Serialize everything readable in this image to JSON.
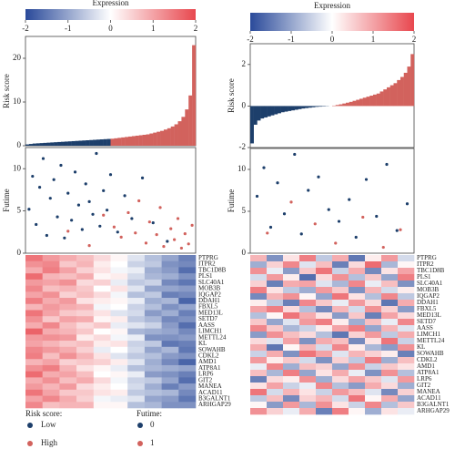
{
  "chart_data": [
    {
      "type": "bar",
      "ylabel": "Risk score",
      "ylim": [
        0,
        25
      ],
      "yticks": [
        0,
        10,
        20
      ],
      "series": [
        {
          "color": "#1d3f6b",
          "values": [
            0.3,
            0.4,
            0.5,
            0.55,
            0.6,
            0.65,
            0.7,
            0.75,
            0.8,
            0.85,
            0.9,
            0.95,
            1.0,
            1.05,
            1.1,
            1.15,
            1.2,
            1.25,
            1.3,
            1.35,
            1.4,
            1.45,
            1.5,
            1.55
          ]
        },
        {
          "color": "#d2625d",
          "values": [
            1.6,
            1.7,
            1.8,
            1.9,
            2.0,
            2.1,
            2.2,
            2.3,
            2.4,
            2.5,
            2.6,
            2.8,
            3.0,
            3.2,
            3.4,
            3.7,
            4.0,
            4.4,
            4.9,
            5.6,
            6.6,
            8.3,
            11.5,
            23
          ]
        }
      ]
    },
    {
      "type": "scatter",
      "ylabel": "Futime",
      "xlim": [
        0,
        48
      ],
      "ylim": [
        0,
        12.5
      ],
      "yticks": [
        0,
        5,
        10
      ],
      "series": [
        {
          "color": "#1d3f6b",
          "x": [
            1,
            2,
            3,
            4,
            5,
            6,
            7,
            8,
            9,
            10,
            11,
            12,
            13,
            14,
            15,
            16,
            17,
            18,
            19,
            20,
            21,
            22,
            23,
            24,
            26,
            28,
            30,
            33,
            36,
            40
          ],
          "values": [
            5.2,
            9.1,
            3.4,
            7.8,
            11.2,
            2.1,
            6.5,
            8.7,
            4.3,
            10.4,
            1.8,
            7.1,
            3.9,
            9.6,
            5.7,
            2.8,
            8.2,
            6.1,
            4.6,
            11.8,
            3.2,
            7.4,
            5.1,
            9.3,
            2.5,
            6.8,
            4.1,
            8.9,
            3.6,
            1.4
          ]
        },
        {
          "color": "#d2625d",
          "x": [
            25,
            27,
            29,
            31,
            32,
            34,
            35,
            37,
            38,
            39,
            41,
            42,
            43,
            44,
            45,
            46,
            47,
            12,
            18,
            22
          ],
          "values": [
            3.1,
            1.9,
            4.8,
            2.4,
            6.2,
            1.2,
            3.7,
            2.2,
            5.4,
            0.8,
            2.9,
            1.6,
            4.1,
            0.6,
            2.3,
            1.1,
            3.3,
            2.6,
            0.9,
            4.5
          ]
        }
      ]
    },
    {
      "type": "heatmap",
      "colorbar_title": "Expression",
      "clim": [
        -2,
        2
      ],
      "cticks": [
        -2,
        -1,
        0,
        1,
        2
      ],
      "colors": [
        "#2a4a9a",
        "#ffffff",
        "#e8474e"
      ],
      "genes": [
        "PTPRG",
        "ITPR2",
        "TBC1D8B",
        "PLS1",
        "SLC40A1",
        "MOB3B",
        "IQGAP2",
        "DDAH1",
        "FBXL5",
        "MED13L",
        "SETD7",
        "AASS",
        "LIMCH1",
        "METTL24",
        "KL",
        "SOWAHB",
        "CDKL2",
        "AMD1",
        "ATP8A1",
        "LRP6",
        "GIT2",
        "MANEA",
        "ACAD11",
        "B3GALNT1",
        "ARHGAP29"
      ],
      "values": [
        [
          1.5,
          1.1,
          0.9,
          0.7,
          0.4,
          0.1,
          -0.3,
          -0.7,
          -1.0,
          -1.4
        ],
        [
          1.2,
          1.3,
          0.6,
          0.8,
          0.2,
          0.0,
          -0.5,
          -0.6,
          -1.2,
          -1.3
        ],
        [
          0.9,
          1.4,
          1.0,
          0.5,
          0.3,
          -0.1,
          -0.2,
          -0.9,
          -1.1,
          -1.6
        ],
        [
          1.6,
          0.8,
          0.7,
          0.9,
          0.1,
          0.2,
          -0.4,
          -0.8,
          -0.9,
          -1.2
        ],
        [
          1.1,
          1.0,
          1.2,
          0.4,
          0.5,
          -0.2,
          -0.6,
          -0.5,
          -1.3,
          -1.5
        ],
        [
          1.3,
          0.7,
          0.8,
          0.6,
          0.0,
          0.3,
          -0.3,
          -1.0,
          -1.0,
          -1.1
        ],
        [
          1.0,
          1.2,
          0.5,
          0.7,
          0.4,
          -0.1,
          -0.7,
          -0.6,
          -1.4,
          -1.3
        ],
        [
          1.4,
          0.9,
          1.1,
          0.3,
          0.2,
          0.1,
          -0.2,
          -0.9,
          -0.8,
          -1.7
        ],
        [
          0.8,
          1.1,
          0.9,
          0.8,
          -0.1,
          0.0,
          -0.5,
          -0.7,
          -1.2,
          -1.0
        ],
        [
          1.5,
          1.0,
          0.6,
          0.5,
          0.3,
          -0.3,
          -0.4,
          -1.1,
          -0.9,
          -1.4
        ],
        [
          1.2,
          0.6,
          1.0,
          0.9,
          0.1,
          0.2,
          -0.6,
          -0.8,
          -1.3,
          -1.2
        ],
        [
          0.9,
          1.3,
          0.7,
          0.4,
          0.6,
          -0.2,
          -0.3,
          -0.5,
          -1.1,
          -1.6
        ],
        [
          1.7,
          0.9,
          0.8,
          0.6,
          0.0,
          0.1,
          -0.8,
          -0.9,
          -1.0,
          -1.3
        ],
        [
          1.1,
          1.2,
          1.1,
          0.2,
          0.4,
          -0.1,
          -0.2,
          -1.2,
          -1.2,
          -1.1
        ],
        [
          1.0,
          0.8,
          0.6,
          0.7,
          0.2,
          0.3,
          -0.5,
          -0.6,
          -1.5,
          -1.4
        ],
        [
          1.3,
          1.1,
          0.9,
          0.5,
          -0.2,
          0.0,
          -0.4,
          -1.0,
          -0.8,
          -1.5
        ],
        [
          1.4,
          0.7,
          1.2,
          0.8,
          0.3,
          -0.3,
          -0.6,
          -0.7,
          -1.1,
          -1.2
        ],
        [
          0.8,
          1.0,
          0.5,
          0.6,
          0.5,
          0.2,
          -0.3,
          -0.9,
          -1.3,
          -1.7
        ],
        [
          1.2,
          1.4,
          0.8,
          0.3,
          0.1,
          -0.2,
          -0.7,
          -0.8,
          -0.9,
          -1.0
        ],
        [
          1.6,
          0.9,
          1.0,
          0.7,
          0.0,
          0.1,
          -0.2,
          -1.1,
          -1.2,
          -1.4
        ],
        [
          0.9,
          1.2,
          0.7,
          0.9,
          0.4,
          -0.1,
          -0.5,
          -0.6,
          -1.0,
          -1.6
        ],
        [
          1.1,
          0.8,
          1.1,
          0.4,
          0.2,
          0.0,
          -0.4,
          -0.9,
          -1.4,
          -1.1
        ],
        [
          1.5,
          1.0,
          0.6,
          0.6,
          0.3,
          0.2,
          -0.6,
          -0.7,
          -0.8,
          -1.3
        ],
        [
          1.0,
          1.3,
          0.9,
          0.5,
          -0.1,
          -0.2,
          -0.3,
          -1.0,
          -1.1,
          -1.5
        ],
        [
          1.3,
          0.7,
          0.8,
          0.8,
          0.1,
          0.1,
          -0.7,
          -0.8,
          -1.2,
          -1.2
        ]
      ]
    },
    {
      "type": "bar",
      "ylabel": "Risk score",
      "ylim": [
        -2,
        3
      ],
      "yticks": [
        -2,
        0,
        2
      ],
      "series": [
        {
          "color": "#1d3f6b",
          "values": [
            -1.8,
            -0.9,
            -0.7,
            -0.6,
            -0.55,
            -0.5,
            -0.45,
            -0.4,
            -0.35,
            -0.3,
            -0.27,
            -0.24,
            -0.21,
            -0.18,
            -0.15,
            -0.12,
            -0.1,
            -0.08,
            -0.06,
            -0.04,
            -0.03,
            -0.02,
            -0.01,
            0.0
          ]
        },
        {
          "color": "#d2625d",
          "values": [
            0.02,
            0.05,
            0.08,
            0.12,
            0.16,
            0.2,
            0.25,
            0.3,
            0.35,
            0.4,
            0.45,
            0.5,
            0.55,
            0.6,
            0.7,
            0.8,
            0.9,
            1.0,
            1.1,
            1.25,
            1.4,
            1.6,
            1.9,
            2.5
          ]
        }
      ]
    },
    {
      "type": "scatter",
      "ylabel": "Futime",
      "xlim": [
        0,
        48
      ],
      "ylim": [
        0,
        12.5
      ],
      "yticks": [
        0,
        5,
        10
      ],
      "series": [
        {
          "color": "#1d3f6b",
          "x": [
            2,
            4,
            6,
            8,
            10,
            13,
            15,
            17,
            20,
            23,
            26,
            29,
            31,
            34,
            37,
            40,
            43,
            46
          ],
          "values": [
            6.8,
            10.2,
            3.1,
            8.4,
            4.7,
            11.8,
            2.3,
            7.5,
            9.1,
            5.2,
            3.8,
            6.4,
            1.9,
            8.8,
            4.4,
            10.6,
            2.7,
            5.9
          ]
        },
        {
          "color": "#d2625d",
          "x": [
            5,
            12,
            19,
            25,
            33,
            39,
            44
          ],
          "values": [
            2.4,
            6.1,
            3.5,
            1.2,
            4.3,
            0.7,
            2.8
          ]
        }
      ]
    },
    {
      "type": "heatmap",
      "colorbar_title": "Expression",
      "clim": [
        -2,
        2
      ],
      "cticks": [
        -2,
        -1,
        0,
        1,
        2
      ],
      "colors": [
        "#2a4a9a",
        "#ffffff",
        "#e8474e"
      ],
      "genes": [
        "PTPRG",
        "ITPR2",
        "TBC1D8B",
        "PLS1",
        "SLC40A1",
        "MOB3B",
        "IQGAP2",
        "DDAH1",
        "FBXL5",
        "MED13L",
        "SETD7",
        "AASS",
        "LIMCH1",
        "METTL24",
        "KL",
        "SOWAHB",
        "CDKL2",
        "AMD1",
        "ATP8A1",
        "LRP6",
        "GIT2",
        "MANEA",
        "ACAD11",
        "B3GALNT1",
        "ARHGAP29"
      ],
      "values": [
        [
          0.8,
          -1.2,
          0.3,
          1.4,
          -0.6,
          0.9,
          -1.5,
          0.2,
          1.1,
          -0.4
        ],
        [
          -0.9,
          0.5,
          1.3,
          -0.3,
          0.7,
          -1.4,
          0.4,
          1.6,
          -0.8,
          0.1
        ],
        [
          1.2,
          -0.2,
          -1.1,
          0.6,
          1.5,
          -0.5,
          0.9,
          -1.3,
          0.3,
          1.0
        ],
        [
          -0.4,
          1.1,
          0.2,
          -1.6,
          0.4,
          1.2,
          -0.7,
          0.6,
          -1.0,
          1.4
        ],
        [
          0.5,
          -1.4,
          0.9,
          1.0,
          -0.3,
          -0.8,
          1.3,
          -0.2,
          0.7,
          -1.2
        ],
        [
          1.4,
          0.3,
          -0.6,
          -0.9,
          1.1,
          0.6,
          -1.2,
          0.8,
          -0.4,
          0.2
        ],
        [
          -1.3,
          0.8,
          1.2,
          0.1,
          -1.0,
          1.5,
          0.3,
          -0.7,
          1.3,
          -0.6
        ],
        [
          0.2,
          -0.6,
          -1.4,
          1.3,
          0.6,
          -0.2,
          1.1,
          0.4,
          -1.5,
          0.9
        ],
        [
          1.0,
          1.4,
          0.4,
          -0.7,
          -1.3,
          0.8,
          -0.4,
          1.2,
          0.5,
          -1.1
        ],
        [
          -0.7,
          0.1,
          1.5,
          0.9,
          0.3,
          -1.1,
          0.6,
          -1.4,
          1.0,
          0.4
        ],
        [
          0.6,
          -1.0,
          -0.3,
          1.1,
          1.4,
          0.2,
          -0.9,
          0.7,
          -0.2,
          1.3
        ],
        [
          1.3,
          0.6,
          -0.8,
          -0.5,
          0.2,
          1.0,
          1.4,
          -1.0,
          0.8,
          -0.3
        ],
        [
          -1.1,
          1.2,
          0.7,
          0.4,
          -0.7,
          -1.5,
          0.5,
          1.1,
          -0.6,
          0.9
        ],
        [
          0.4,
          -0.3,
          1.0,
          -1.2,
          0.9,
          0.7,
          -1.3,
          0.3,
          1.5,
          -0.5
        ],
        [
          0.9,
          -1.5,
          0.1,
          0.8,
          -0.4,
          1.3,
          0.2,
          -0.8,
          -1.1,
          1.2
        ],
        [
          -0.5,
          0.9,
          -1.2,
          1.5,
          1.0,
          -0.3,
          0.8,
          0.5,
          0.2,
          -1.4
        ],
        [
          1.1,
          0.2,
          0.6,
          -0.4,
          -1.2,
          0.5,
          -0.6,
          1.4,
          -0.9,
          0.7
        ],
        [
          -0.2,
          1.3,
          -0.9,
          0.7,
          0.5,
          -1.0,
          1.2,
          -0.5,
          0.6,
          0.3
        ],
        [
          0.7,
          -0.8,
          1.4,
          -1.0,
          0.3,
          0.9,
          -0.2,
          -1.2,
          1.2,
          -0.7
        ],
        [
          -1.4,
          0.4,
          0.2,
          1.2,
          -0.9,
          0.4,
          1.0,
          0.6,
          -0.3,
          1.1
        ],
        [
          0.3,
          1.0,
          -0.5,
          -0.2,
          1.3,
          -0.7,
          -1.1,
          0.9,
          0.4,
          -0.9
        ],
        [
          1.5,
          -0.4,
          0.8,
          0.3,
          -0.5,
          1.1,
          0.7,
          -0.3,
          -1.3,
          0.5
        ],
        [
          -0.6,
          0.7,
          -1.3,
          0.5,
          0.8,
          -0.4,
          1.5,
          0.1,
          0.9,
          -1.0
        ],
        [
          0.1,
          -1.1,
          1.1,
          -0.8,
          1.2,
          0.3,
          -0.5,
          1.3,
          -0.7,
          0.6
        ],
        [
          1.2,
          0.5,
          -0.2,
          0.9,
          -1.4,
          1.4,
          0.1,
          -0.9,
          0.3,
          -0.2
        ]
      ]
    }
  ],
  "legend": {
    "risk_title": "Risk score:",
    "risk_items": [
      {
        "name": "Low",
        "color": "#1d3f6b"
      },
      {
        "name": "High",
        "color": "#d2625d"
      }
    ],
    "futime_title": "Futime:",
    "futime_items": [
      {
        "name": "0",
        "color": "#1d3f6b"
      },
      {
        "name": "1",
        "color": "#d2625d"
      }
    ]
  }
}
